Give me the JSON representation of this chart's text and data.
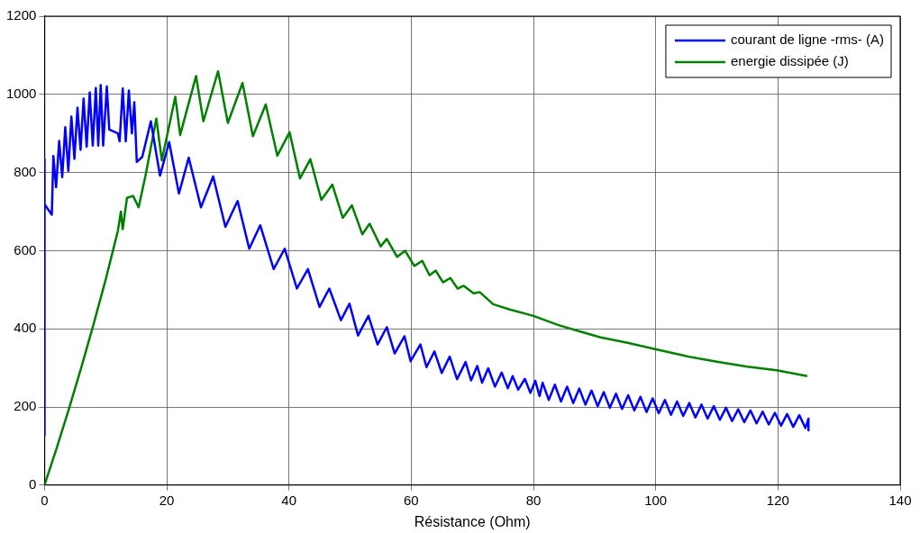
{
  "chart_data": {
    "type": "line",
    "xlabel": "Résistance (Ohm)",
    "xlim": [
      0,
      140
    ],
    "xticks": [
      0,
      20,
      40,
      60,
      80,
      100,
      120,
      140
    ],
    "ylim": [
      0,
      1200
    ],
    "yticks": [
      0,
      200,
      400,
      600,
      800,
      1000,
      1200
    ],
    "grid": true,
    "legend": "top right",
    "marker": "none",
    "line_style": "solid",
    "series": [
      {
        "name": "courant de ligne -rms- (A)",
        "color": "#0000ff",
        "x": [
          0,
          0,
          0,
          1.2,
          1.45,
          1.9,
          2.4,
          2.9,
          3.4,
          3.9,
          4.4,
          4.9,
          5.4,
          5.9,
          6.4,
          6.9,
          7.4,
          7.9,
          8.4,
          8.8,
          9.2,
          9.6,
          10.2,
          10.6,
          12,
          12.3,
          12.8,
          13.3,
          13.8,
          14.3,
          14.7,
          15.1,
          16,
          17.4,
          18.9,
          20.4,
          22,
          23.6,
          25.6,
          27.6,
          29.6,
          31.6,
          33.5,
          35.3,
          37.5,
          39.3,
          41.3,
          43.1,
          45,
          46.6,
          48.5,
          49.9,
          51.3,
          53,
          54.5,
          56,
          57.3,
          58.9,
          59.9,
          61.5,
          62.5,
          63.8,
          65,
          66.3,
          67.5,
          68.9,
          69.8,
          70.8,
          71.6,
          72.6,
          73.7,
          74.8,
          75.8,
          76.6,
          77.5,
          78.6,
          79.5,
          80.3,
          81,
          81.5,
          82.5,
          83.5,
          84.5,
          85.5,
          86.5,
          87.5,
          88.5,
          89.5,
          90.5,
          91.5,
          92.5,
          93.5,
          94.5,
          95.5,
          96.5,
          97.5,
          98.5,
          99.5,
          100.5,
          101.5,
          102.5,
          103.5,
          104.5,
          105.5,
          106.5,
          107.5,
          108.5,
          109.5,
          110.5,
          111.5,
          112.5,
          113.5,
          114.5,
          115.5,
          116.5,
          117.5,
          118.5,
          119.5,
          120.5,
          121.5,
          122.5,
          123.5,
          124.5,
          125,
          125
        ],
        "values": [
          125,
          834,
          719,
          692,
          842,
          762,
          881,
          788,
          916,
          804,
          943,
          835,
          966,
          858,
          989,
          866,
          1005,
          869,
          1016,
          869,
          1024,
          869,
          1020,
          910,
          900,
          880,
          1015,
          880,
          1010,
          900,
          980,
          827,
          840,
          931,
          792,
          878,
          746,
          838,
          711,
          790,
          661,
          727,
          605,
          665,
          553,
          605,
          503,
          553,
          456,
          503,
          422,
          464,
          383,
          433,
          360,
          404,
          337,
          381,
          317,
          360,
          302,
          342,
          287,
          329,
          271,
          315,
          268,
          305,
          262,
          299,
          252,
          288,
          248,
          279,
          244,
          272,
          236,
          267,
          228,
          262,
          218,
          257,
          214,
          252,
          210,
          247,
          206,
          242,
          202,
          238,
          198,
          234,
          195,
          230,
          191,
          226,
          187,
          222,
          184,
          218,
          180,
          214,
          177,
          210,
          173,
          206,
          170,
          202,
          167,
          198,
          164,
          194,
          161,
          191,
          158,
          188,
          155,
          185,
          152,
          182,
          149,
          179,
          146,
          170,
          140
        ]
      },
      {
        "name": "energie dissipée (J)",
        "color": "#008000",
        "x": [
          0,
          2,
          4,
          6,
          8,
          10,
          11.2,
          12,
          12.5,
          12.8,
          13.5,
          14.5,
          15.4,
          16.5,
          18.3,
          19.2,
          21.4,
          22.2,
          24.8,
          26,
          28.4,
          30,
          32.4,
          34.1,
          36.2,
          38.1,
          40.1,
          41.8,
          43.5,
          45.3,
          47.1,
          48.8,
          50.3,
          52,
          53.2,
          55,
          56,
          57.7,
          59,
          60.5,
          61.8,
          63,
          64,
          65.2,
          66.4,
          67.6,
          68.6,
          70.2,
          71.2,
          73.4,
          76,
          80,
          84,
          87.4,
          91,
          95.4,
          99.9,
          105,
          110,
          115,
          119.8,
          124.8
        ],
        "values": [
          0,
          95,
          195,
          300,
          410,
          525,
          600,
          650,
          700,
          655,
          735,
          740,
          711,
          790,
          938,
          831,
          994,
          896,
          1047,
          931,
          1059,
          927,
          1029,
          893,
          974,
          843,
          903,
          785,
          834,
          730,
          769,
          684,
          716,
          642,
          669,
          611,
          630,
          584,
          600,
          561,
          574,
          537,
          549,
          519,
          530,
          503,
          510,
          491,
          494,
          463,
          450,
          433,
          410,
          394,
          378,
          364,
          348,
          330,
          316,
          303,
          294,
          279
        ]
      }
    ]
  }
}
